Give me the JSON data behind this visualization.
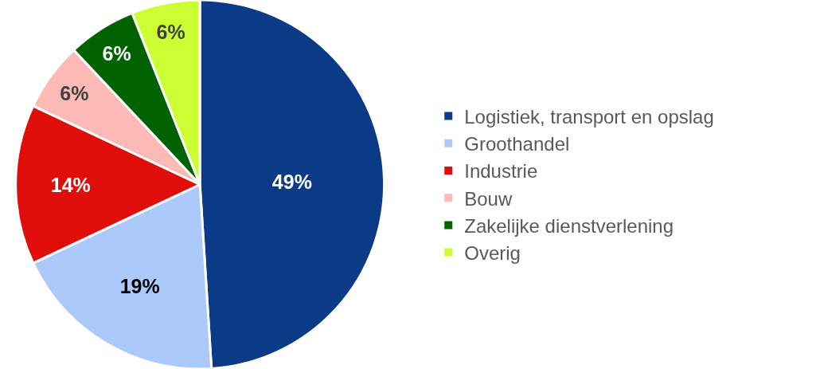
{
  "chart_data": {
    "type": "pie",
    "categories": [
      "Logistiek, transport en opslag",
      "Groothandel",
      "Industrie",
      "Bouw",
      "Zakelijke dienstverlening",
      "Overig"
    ],
    "values": [
      49,
      19,
      14,
      6,
      6,
      6
    ],
    "value_labels": [
      "49%",
      "19%",
      "14%",
      "6%",
      "6%",
      "6%"
    ],
    "colors": [
      "#0b3a87",
      "#abc9fb",
      "#e00e0a",
      "#fbbab5",
      "#016300",
      "#ccff33"
    ],
    "legend": "right"
  }
}
